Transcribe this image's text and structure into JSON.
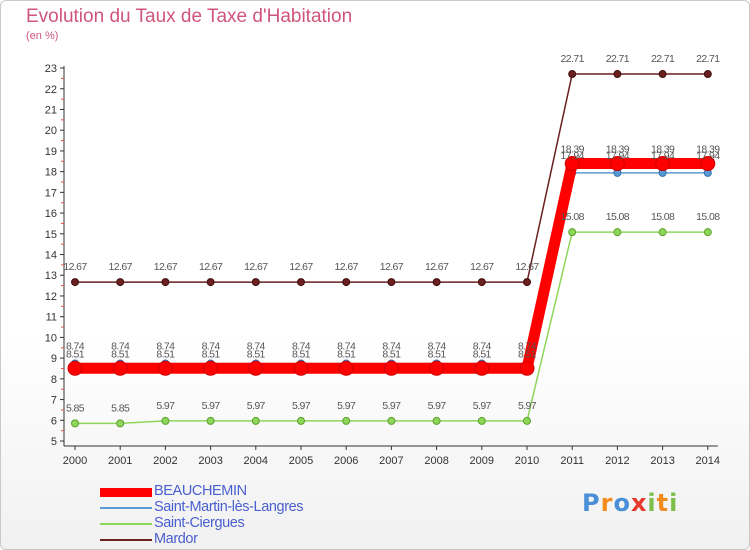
{
  "header": {
    "title": "Evolution du Taux de Taxe d'Habitation",
    "unit": "(en %)"
  },
  "logo": {
    "text": "Proxiti",
    "letters": [
      "P",
      "r",
      "o",
      "x",
      "i",
      "t",
      "i"
    ],
    "colors": [
      "#4a8fd8",
      "#f28c1e",
      "#4a8fd8",
      "#e83a2c",
      "#7cc04b",
      "#f28c1e",
      "#7cc04b"
    ]
  },
  "chart_data": {
    "type": "line",
    "title": "Evolution du Taux de Taxe d'Habitation",
    "ylabel": "(en %)",
    "xlabel": "",
    "x": [
      "2000",
      "2001",
      "2002",
      "2003",
      "2004",
      "2005",
      "2006",
      "2007",
      "2008",
      "2009",
      "2010",
      "2011",
      "2012",
      "2013",
      "2014"
    ],
    "ylim": [
      5,
      23
    ],
    "yticks": [
      "5",
      "6",
      "7",
      "8",
      "9",
      "10",
      "11",
      "12",
      "13",
      "14",
      "15",
      "16",
      "17",
      "18",
      "19",
      "20",
      "21",
      "22",
      "23"
    ],
    "grid": false,
    "legend": "bottom-left",
    "series": [
      {
        "name": "BEAUCHEMIN",
        "color": "#ff0000",
        "values": [
          8.51,
          8.51,
          8.51,
          8.51,
          8.51,
          8.51,
          8.51,
          8.51,
          8.51,
          8.51,
          8.51,
          18.39,
          18.39,
          18.39,
          18.39
        ],
        "labels": [
          "8.51",
          "8.51",
          "8.51",
          "8.51",
          "8.51",
          "8.51",
          "8.51",
          "8.51",
          "8.51",
          "8.51",
          "8.51",
          "18.39",
          "18.39",
          "18.39",
          "18.39"
        ]
      },
      {
        "name": "Saint-Martin-lès-Langres",
        "color": "#5b9bd5",
        "values": [
          8.74,
          8.74,
          8.74,
          8.74,
          8.74,
          8.74,
          8.74,
          8.74,
          8.74,
          8.74,
          8.74,
          17.94,
          17.94,
          17.94,
          17.94
        ],
        "labels": [
          "8.74",
          "8.74",
          "8.74",
          "8.74",
          "8.74",
          "8.74",
          "8.74",
          "8.74",
          "8.74",
          "8.74",
          "8.74",
          "17.94",
          "17.94",
          "17.94",
          "17.94"
        ]
      },
      {
        "name": "Saint-Ciergues",
        "color": "#8ed65a",
        "values": [
          5.85,
          5.85,
          5.97,
          5.97,
          5.97,
          5.97,
          5.97,
          5.97,
          5.97,
          5.97,
          5.97,
          15.08,
          15.08,
          15.08,
          15.08
        ],
        "labels": [
          "5.85",
          "5.85",
          "5.97",
          "5.97",
          "5.97",
          "5.97",
          "5.97",
          "5.97",
          "5.97",
          "5.97",
          "5.97",
          "15.08",
          "15.08",
          "15.08",
          "15.08"
        ]
      },
      {
        "name": "Mardor",
        "color": "#6b1f1f",
        "values": [
          12.67,
          12.67,
          12.67,
          12.67,
          12.67,
          12.67,
          12.67,
          12.67,
          12.67,
          12.67,
          12.67,
          22.71,
          22.71,
          22.71,
          22.71
        ],
        "labels": [
          "12.67",
          "12.67",
          "12.67",
          "12.67",
          "12.67",
          "12.67",
          "12.67",
          "12.67",
          "12.67",
          "12.67",
          "12.67",
          "22.71",
          "22.71",
          "22.71",
          "22.71"
        ]
      }
    ]
  }
}
